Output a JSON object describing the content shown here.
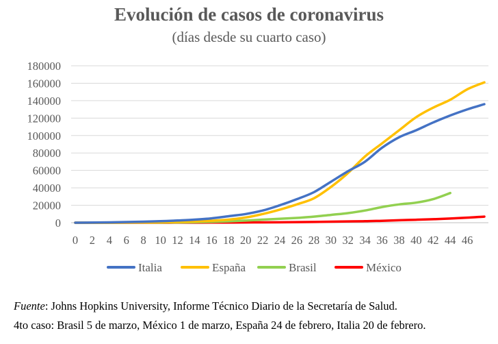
{
  "chart_data": {
    "type": "line",
    "title": "Evolución de casos de coronavirus",
    "subtitle": "(días desde su cuarto caso)",
    "xlabel": "",
    "ylabel": "",
    "ylim": [
      0,
      180000
    ],
    "yticks": [
      "0",
      "20000",
      "40000",
      "60000",
      "80000",
      "100000",
      "120000",
      "140000",
      "160000",
      "180000"
    ],
    "xlim": [
      0,
      48
    ],
    "xticks": [
      "0",
      "2",
      "4",
      "6",
      "8",
      "10",
      "12",
      "14",
      "16",
      "18",
      "20",
      "22",
      "24",
      "26",
      "28",
      "30",
      "32",
      "34",
      "36",
      "38",
      "40",
      "42",
      "44",
      "46"
    ],
    "grid": "horizontal",
    "legend": "bottom",
    "series": [
      {
        "name": "Italia",
        "color": "#4472c4",
        "x": [
          0,
          2,
          4,
          6,
          8,
          10,
          12,
          14,
          16,
          18,
          20,
          22,
          24,
          26,
          28,
          30,
          32,
          34,
          36,
          38,
          40,
          42,
          44,
          46,
          48
        ],
        "y": [
          4,
          150,
          400,
          800,
          1200,
          1700,
          2500,
          3500,
          5000,
          7500,
          10000,
          14000,
          20000,
          27000,
          35000,
          47000,
          59000,
          70000,
          86000,
          98000,
          106000,
          115000,
          123000,
          130000,
          136000
        ]
      },
      {
        "name": "España",
        "color": "#ffc000",
        "x": [
          0,
          2,
          4,
          6,
          8,
          10,
          12,
          14,
          16,
          18,
          20,
          22,
          24,
          26,
          28,
          30,
          32,
          34,
          36,
          38,
          40,
          42,
          44,
          46,
          48
        ],
        "y": [
          4,
          20,
          80,
          200,
          400,
          600,
          900,
          1500,
          2300,
          3500,
          6000,
          10000,
          15000,
          21000,
          28000,
          41000,
          57000,
          76000,
          91000,
          106000,
          121000,
          132000,
          141000,
          153000,
          161000
        ]
      },
      {
        "name": "Brasil",
        "color": "#92d050",
        "x": [
          0,
          2,
          4,
          6,
          8,
          10,
          12,
          14,
          16,
          18,
          20,
          22,
          24,
          26,
          28,
          30,
          32,
          34,
          36,
          38,
          40,
          42,
          44
        ],
        "y": [
          4,
          15,
          30,
          60,
          120,
          200,
          350,
          600,
          1000,
          1600,
          2400,
          3500,
          4500,
          5500,
          7000,
          9000,
          11000,
          14000,
          18000,
          21000,
          23000,
          27000,
          34000
        ]
      },
      {
        "name": "México",
        "color": "#ff0000",
        "x": [
          0,
          2,
          4,
          6,
          8,
          10,
          12,
          14,
          16,
          18,
          20,
          22,
          24,
          26,
          28,
          30,
          32,
          34,
          36,
          38,
          40,
          42,
          44,
          46,
          48
        ],
        "y": [
          4,
          6,
          8,
          10,
          15,
          30,
          50,
          80,
          120,
          200,
          300,
          400,
          500,
          700,
          900,
          1200,
          1500,
          1700,
          2200,
          2800,
          3400,
          4000,
          4800,
          5800,
          7000
        ]
      }
    ]
  },
  "footer": {
    "source_label": "Fuente",
    "source_text": ": Johns Hopkins University, Informe Técnico Diario de la Secretaría de Salud.",
    "note": "4to caso: Brasil 5 de marzo, México 1 de marzo, España 24 de febrero, Italia 20 de febrero."
  }
}
